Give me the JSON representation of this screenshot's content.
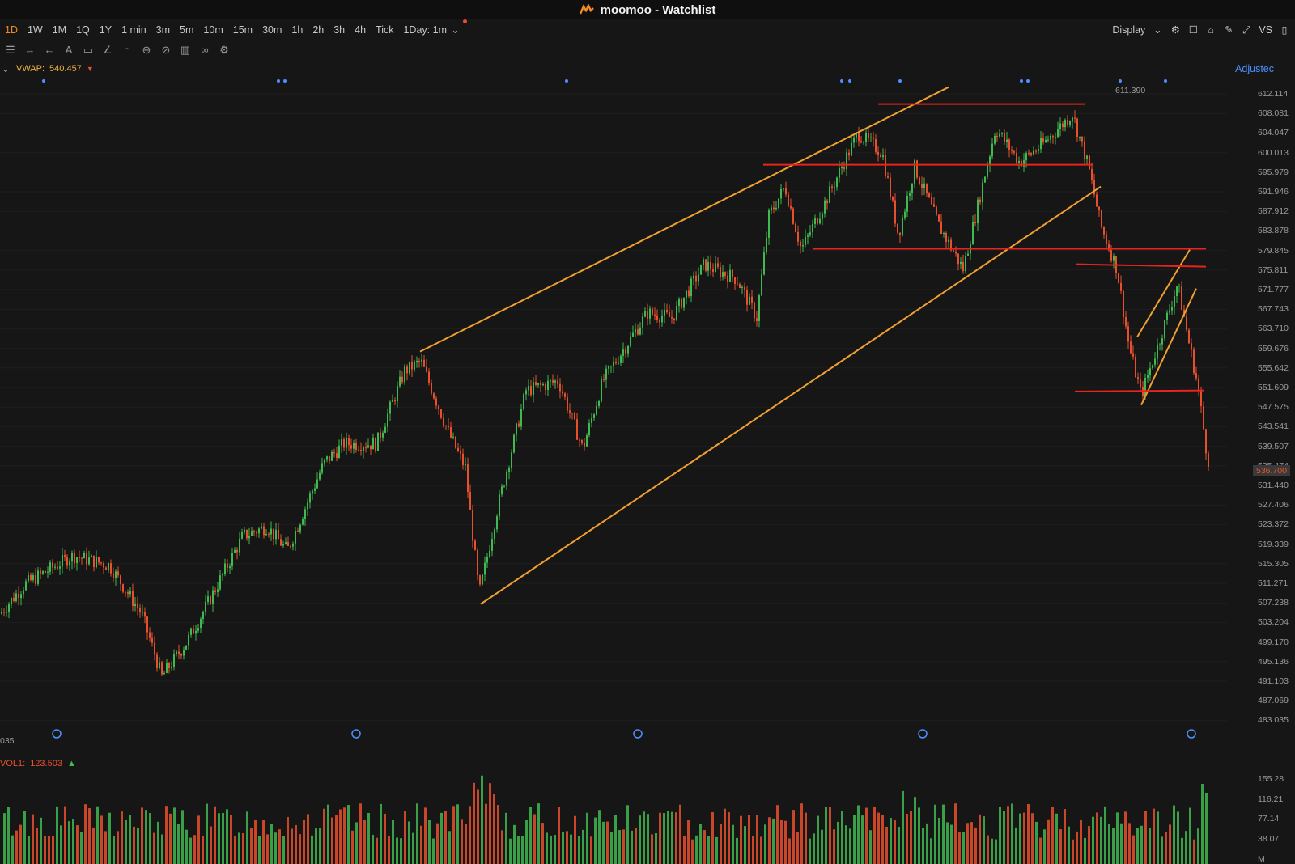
{
  "window": {
    "title": "moomoo - Watchlist"
  },
  "timeframes": [
    "1D",
    "1W",
    "1M",
    "1Q",
    "1Y",
    "1 min",
    "3m",
    "5m",
    "10m",
    "15m",
    "30m",
    "1h",
    "2h",
    "3h",
    "4h",
    "Tick"
  ],
  "active_timeframe": "1D",
  "interval_select": "1Day: 1m",
  "toolbar_right": {
    "display_label": "Display",
    "vs_label": "VS"
  },
  "indicator": {
    "name": "VWAP:",
    "value": "540.457"
  },
  "adjusted_label": "Adjustec",
  "price_axis": [
    "612.114",
    "608.081",
    "604.047",
    "600.013",
    "595.979",
    "591.946",
    "587.912",
    "583.878",
    "579.845",
    "575.811",
    "571.777",
    "567.743",
    "563.710",
    "559.676",
    "555.642",
    "551.609",
    "547.575",
    "543.541",
    "539.507",
    "535.474",
    "531.440",
    "527.406",
    "523.372",
    "519.339",
    "515.305",
    "511.271",
    "507.238",
    "503.204",
    "499.170",
    "495.136",
    "491.103",
    "487.069",
    "483.035"
  ],
  "current_price": "536.700",
  "high_label": "611.390",
  "corner_label": "035",
  "volume": {
    "name": "VOL1:",
    "value": "123.503",
    "axis": [
      "155.28",
      "116.21",
      "77.14",
      "38.07",
      "M"
    ]
  },
  "colors": {
    "up": "#3fb950",
    "down": "#e8502d",
    "trend": "#f0a030",
    "level": "#e8241d",
    "accent": "#f08a24",
    "link": "#4d90fe"
  }
}
